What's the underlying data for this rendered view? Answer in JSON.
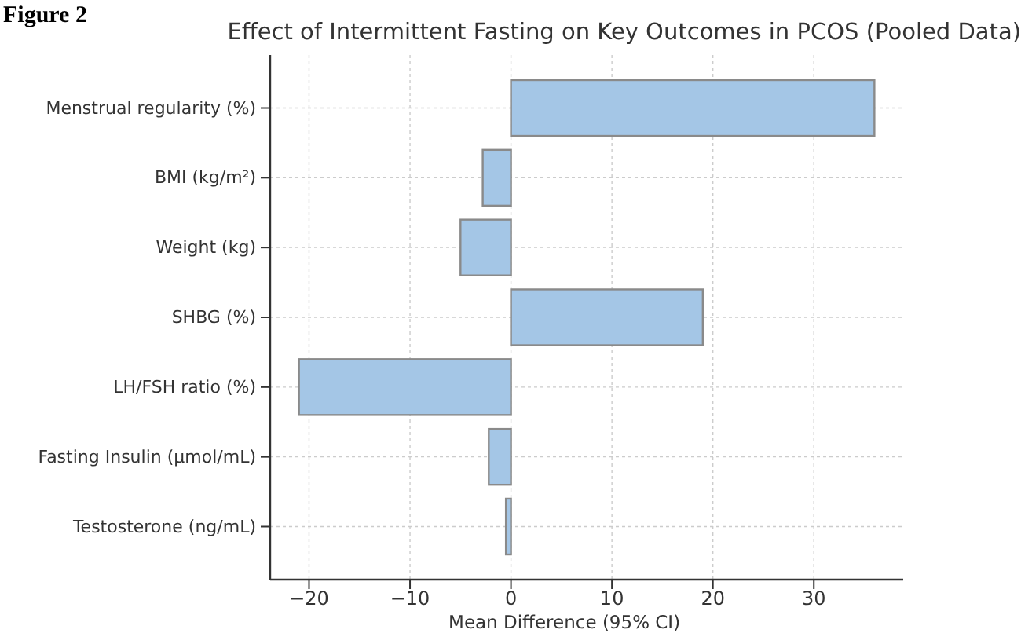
{
  "chart_data": {
    "type": "bar",
    "orientation": "horizontal",
    "title": "Effect of Intermittent Fasting on Key Outcomes in PCOS (Pooled Data)",
    "xlabel": "Mean Difference (95% CI)",
    "annotations": [
      "Figure 2"
    ],
    "categories": [
      "Menstrual regularity (%)",
      "BMI (kg/m²)",
      "Weight (kg)",
      "SHBG (%)",
      "LH/FSH ratio (%)",
      "Fasting Insulin (µmol/mL)",
      "Testosterone (ng/mL)"
    ],
    "values": [
      36,
      -2.8,
      -5,
      19,
      -21,
      -2.2,
      -0.5
    ],
    "color": "#a4c6e6",
    "xlim": [
      -23.85,
      38.85
    ],
    "xticks": [
      {
        "value": -20,
        "label": "−20"
      },
      {
        "value": -10,
        "label": "−10"
      },
      0,
      10,
      20,
      30
    ],
    "grid": true
  }
}
